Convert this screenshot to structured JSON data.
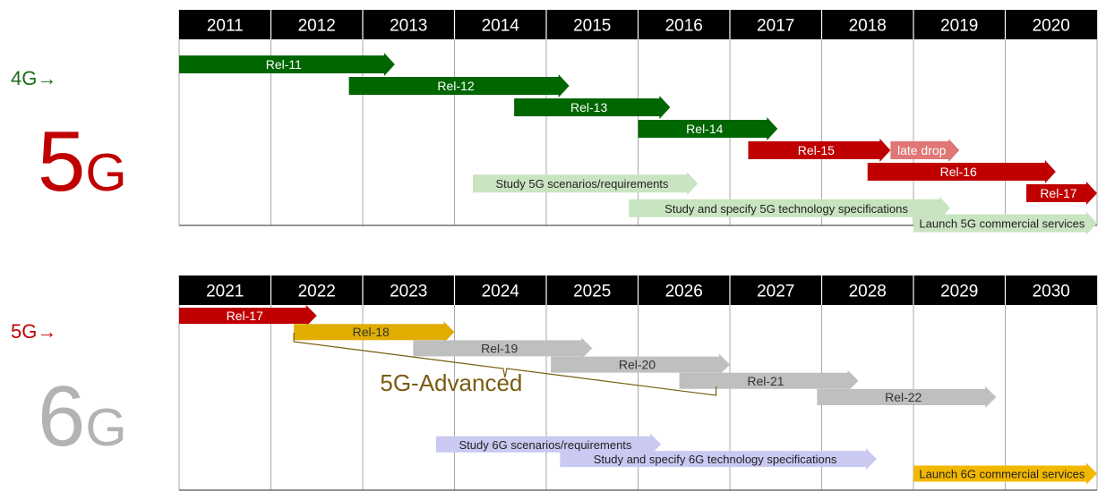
{
  "top_panel": {
    "years": [
      "2011",
      "2012",
      "2013",
      "2014",
      "2015",
      "2016",
      "2017",
      "2018",
      "2019",
      "2020"
    ],
    "label_prev": "4G→",
    "label_main": "5G",
    "colors": {
      "prev": "#1a6e1a",
      "main": "#c00000"
    },
    "bars": [
      {
        "label": "Rel-11",
        "start": 2011.0,
        "end": 2013.35,
        "row": 0,
        "color": "#006600",
        "text_color": "#ffffff"
      },
      {
        "label": "Rel-12",
        "start": 2012.85,
        "end": 2015.25,
        "row": 1,
        "color": "#006600",
        "text_color": "#ffffff"
      },
      {
        "label": "Rel-13",
        "start": 2014.65,
        "end": 2016.35,
        "row": 2,
        "color": "#006600",
        "text_color": "#ffffff"
      },
      {
        "label": "Rel-14",
        "start": 2016.0,
        "end": 2017.52,
        "row": 3,
        "color": "#006600",
        "text_color": "#ffffff"
      },
      {
        "label": "Rel-15",
        "start": 2017.2,
        "end": 2018.75,
        "row": 4,
        "color": "#c00000",
        "text_color": "#ffffff"
      },
      {
        "label": "late drop",
        "start": 2018.75,
        "end": 2019.5,
        "row": 4,
        "color": "#e07676",
        "text_color": "#ffffff"
      },
      {
        "label": "Rel-16",
        "start": 2018.5,
        "end": 2020.55,
        "row": 5,
        "color": "#c00000",
        "text_color": "#ffffff"
      },
      {
        "label": "Rel-17",
        "start": 2020.23,
        "end": 2021.0,
        "row": 6,
        "color": "#c00000",
        "text_color": "#ffffff"
      },
      {
        "label": "Study 5G scenarios/requirements",
        "start": 2014.2,
        "end": 2016.65,
        "row": 5.55,
        "color": "#c9e4c0",
        "text_color": "#222222"
      },
      {
        "label": "Study and specify 5G technology specifications",
        "start": 2015.9,
        "end": 2019.4,
        "row": 6.7,
        "color": "#c9e4c0",
        "text_color": "#222222"
      },
      {
        "label": "Launch 5G commercial services",
        "start": 2019.0,
        "end": 2021.0,
        "row": 7.4,
        "color": "#c9e4c0",
        "text_color": "#222222"
      }
    ]
  },
  "bottom_panel": {
    "years": [
      "2021",
      "2022",
      "2023",
      "2024",
      "2025",
      "2026",
      "2027",
      "2028",
      "2029",
      "2030"
    ],
    "label_prev": "5G→",
    "label_main": "6G",
    "colors": {
      "prev": "#c00000",
      "main": "#b3b3b3"
    },
    "bars": [
      {
        "label": "Rel-17",
        "start": 2021.0,
        "end": 2022.5,
        "row": 0,
        "color": "#c00000",
        "text_color": "#ffffff"
      },
      {
        "label": "Rel-18",
        "start": 2022.25,
        "end": 2024.0,
        "row": 1,
        "color": "#e0ad00",
        "text_color": "#333333"
      },
      {
        "label": "Rel-19",
        "start": 2023.55,
        "end": 2025.5,
        "row": 2,
        "color": "#bfbfbf",
        "text_color": "#333333"
      },
      {
        "label": "Rel-20",
        "start": 2025.05,
        "end": 2027.0,
        "row": 3,
        "color": "#bfbfbf",
        "text_color": "#333333"
      },
      {
        "label": "Rel-21",
        "start": 2026.45,
        "end": 2028.4,
        "row": 4,
        "color": "#bfbfbf",
        "text_color": "#333333"
      },
      {
        "label": "Rel-22",
        "start": 2027.95,
        "end": 2029.9,
        "row": 5,
        "color": "#bfbfbf",
        "text_color": "#333333"
      },
      {
        "label": "Study 6G scenarios/requirements",
        "start": 2023.8,
        "end": 2026.25,
        "row": 7.9,
        "color": "#c9c9f2",
        "text_color": "#222222"
      },
      {
        "label": "Study and specify 6G technology specifications",
        "start": 2025.15,
        "end": 2028.6,
        "row": 8.8,
        "color": "#c9c9f2",
        "text_color": "#222222"
      },
      {
        "label": "Launch 6G commercial services",
        "start": 2029.0,
        "end": 2031.0,
        "row": 9.7,
        "color": "#f2b800",
        "text_color": "#222222"
      }
    ],
    "bracket": {
      "label": "5G-Advanced",
      "start": 2022.25,
      "end": 2026.85,
      "color": "#7a5c10"
    }
  }
}
